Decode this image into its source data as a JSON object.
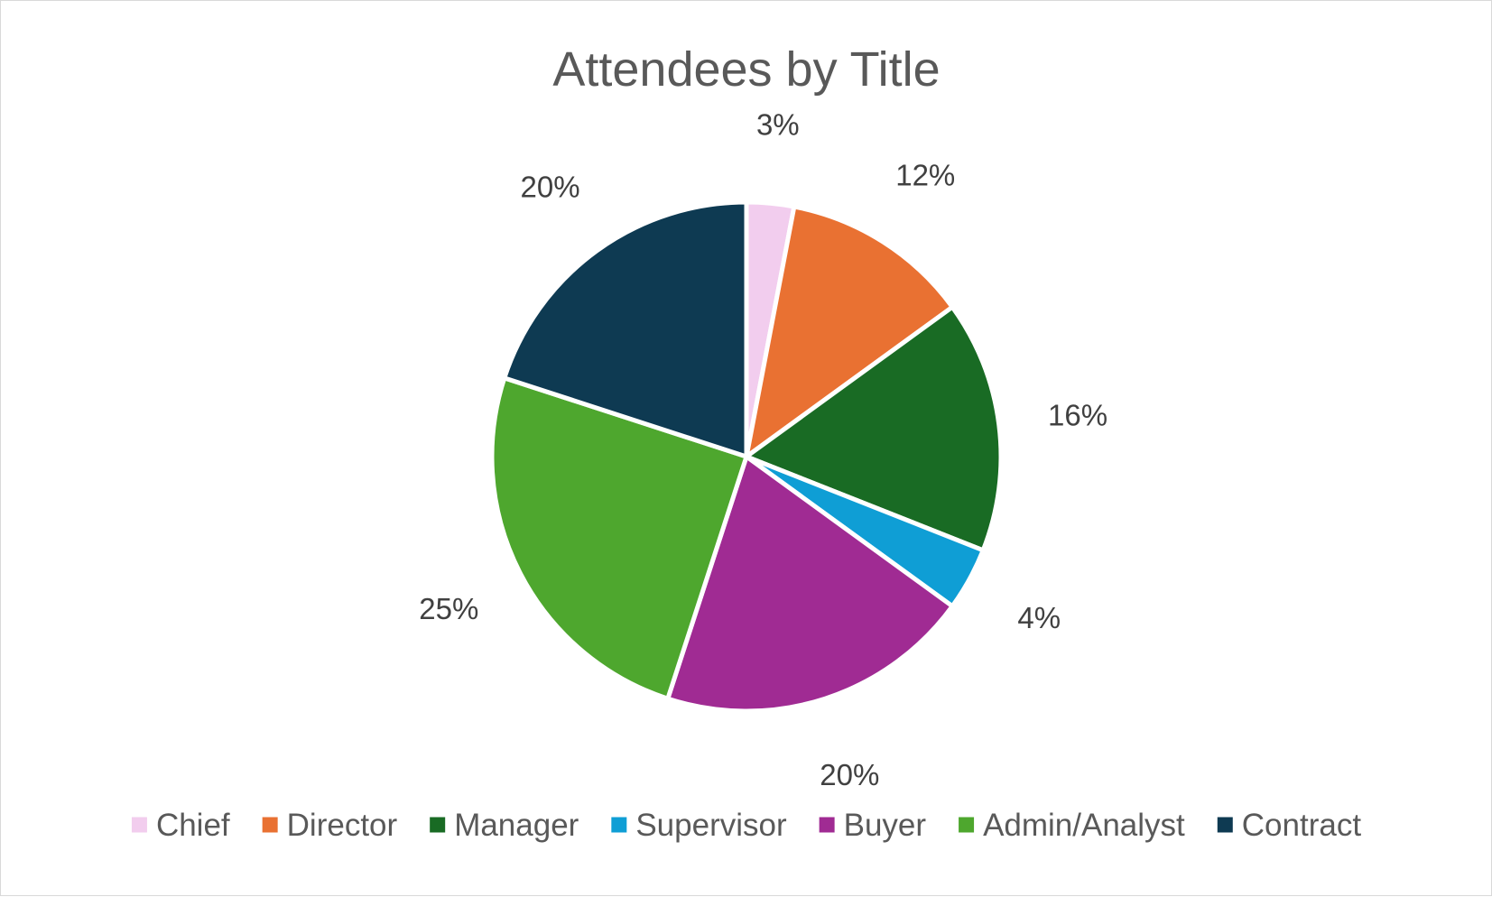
{
  "chart_data": {
    "type": "pie",
    "title": "Attendees by Title",
    "slices": [
      {
        "name": "Chief",
        "value": 3,
        "label": "3%",
        "color": "#f2cdee"
      },
      {
        "name": "Director",
        "value": 12,
        "label": "12%",
        "color": "#e97132"
      },
      {
        "name": "Manager",
        "value": 16,
        "label": "16%",
        "color": "#196b24"
      },
      {
        "name": "Supervisor",
        "value": 4,
        "label": "4%",
        "color": "#0f9ed5"
      },
      {
        "name": "Buyer",
        "value": 20,
        "label": "20%",
        "color": "#a02b93"
      },
      {
        "name": "Admin/Analyst",
        "value": 25,
        "label": "25%",
        "color": "#4ea72e"
      },
      {
        "name": "Contract",
        "value": 20,
        "label": "20%",
        "color": "#0e3a52"
      }
    ],
    "legend_position": "bottom",
    "start_angle": "12 o'clock, clockwise"
  }
}
